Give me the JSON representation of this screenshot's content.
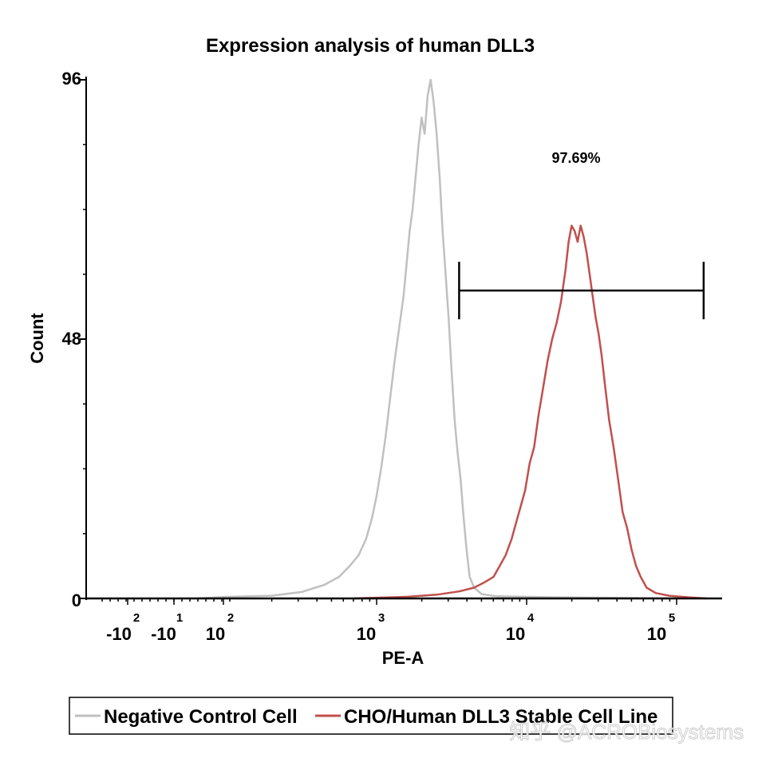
{
  "chart_data": {
    "type": "histogram",
    "title": "Expression analysis of human DLL3",
    "xlabel": "PE-A",
    "ylabel": "Count",
    "ylim": [
      0,
      96
    ],
    "y_ticks": [
      "0",
      "48",
      "96"
    ],
    "x_scale": "biexponential",
    "x_ticks": [
      {
        "base": "-10",
        "exp": "2"
      },
      {
        "base": "-10",
        "exp": "1"
      },
      {
        "base": "10",
        "exp": "2"
      },
      {
        "base": "10",
        "exp": "3"
      },
      {
        "base": "10",
        "exp": "4"
      },
      {
        "base": "10",
        "exp": "5"
      }
    ],
    "gate": {
      "label": "97.69%",
      "x_start_log": 3.55,
      "x_end_log": 5.18,
      "level": 57
    },
    "series": [
      {
        "name": "Negative Control Cell",
        "color": "#c0c0c0",
        "points": [
          [
            1.8,
            0
          ],
          [
            2.0,
            0.3
          ],
          [
            2.3,
            0.5
          ],
          [
            2.5,
            1.2
          ],
          [
            2.65,
            2.5
          ],
          [
            2.75,
            4
          ],
          [
            2.82,
            6
          ],
          [
            2.88,
            8
          ],
          [
            2.93,
            11
          ],
          [
            2.97,
            15
          ],
          [
            3.0,
            19
          ],
          [
            3.03,
            24
          ],
          [
            3.06,
            30
          ],
          [
            3.09,
            37
          ],
          [
            3.12,
            44
          ],
          [
            3.15,
            50
          ],
          [
            3.18,
            56
          ],
          [
            3.2,
            62
          ],
          [
            3.22,
            68
          ],
          [
            3.24,
            72
          ],
          [
            3.26,
            78
          ],
          [
            3.28,
            84
          ],
          [
            3.3,
            89
          ],
          [
            3.32,
            86
          ],
          [
            3.34,
            93
          ],
          [
            3.36,
            96
          ],
          [
            3.38,
            92
          ],
          [
            3.4,
            86
          ],
          [
            3.42,
            78
          ],
          [
            3.44,
            68
          ],
          [
            3.46,
            60
          ],
          [
            3.48,
            52
          ],
          [
            3.5,
            42
          ],
          [
            3.52,
            33
          ],
          [
            3.54,
            27
          ],
          [
            3.56,
            22
          ],
          [
            3.58,
            15
          ],
          [
            3.6,
            9
          ],
          [
            3.62,
            4
          ],
          [
            3.65,
            2
          ],
          [
            3.7,
            0.8
          ],
          [
            3.8,
            0.4
          ],
          [
            4.2,
            0.2
          ],
          [
            5.0,
            0
          ]
        ]
      },
      {
        "name": "CHO/Human DLL3 Stable Cell Line",
        "color": "#c0504d",
        "points": [
          [
            2.85,
            0
          ],
          [
            3.2,
            0.3
          ],
          [
            3.4,
            0.7
          ],
          [
            3.55,
            1.3
          ],
          [
            3.65,
            2
          ],
          [
            3.72,
            3
          ],
          [
            3.78,
            4
          ],
          [
            3.82,
            6
          ],
          [
            3.86,
            8
          ],
          [
            3.9,
            11
          ],
          [
            3.93,
            14
          ],
          [
            3.96,
            17
          ],
          [
            3.99,
            20
          ],
          [
            4.02,
            25
          ],
          [
            4.05,
            28
          ],
          [
            4.08,
            34
          ],
          [
            4.11,
            39
          ],
          [
            4.14,
            44
          ],
          [
            4.17,
            48
          ],
          [
            4.2,
            51
          ],
          [
            4.23,
            55
          ],
          [
            4.26,
            61
          ],
          [
            4.28,
            66
          ],
          [
            4.3,
            69
          ],
          [
            4.32,
            68
          ],
          [
            4.34,
            66
          ],
          [
            4.36,
            69
          ],
          [
            4.38,
            67
          ],
          [
            4.4,
            64
          ],
          [
            4.42,
            60
          ],
          [
            4.44,
            56
          ],
          [
            4.46,
            52
          ],
          [
            4.48,
            49
          ],
          [
            4.5,
            45
          ],
          [
            4.52,
            40
          ],
          [
            4.55,
            33
          ],
          [
            4.58,
            28
          ],
          [
            4.61,
            22
          ],
          [
            4.64,
            16
          ],
          [
            4.67,
            13
          ],
          [
            4.7,
            9
          ],
          [
            4.73,
            6
          ],
          [
            4.76,
            4
          ],
          [
            4.8,
            2
          ],
          [
            4.86,
            1
          ],
          [
            4.95,
            0.5
          ],
          [
            5.08,
            0.2
          ],
          [
            5.2,
            0
          ]
        ]
      }
    ],
    "legend": [
      "Negative Control Cell",
      "CHO/Human DLL3 Stable Cell Line"
    ]
  },
  "watermark": "知乎 @ACROBiosystems"
}
